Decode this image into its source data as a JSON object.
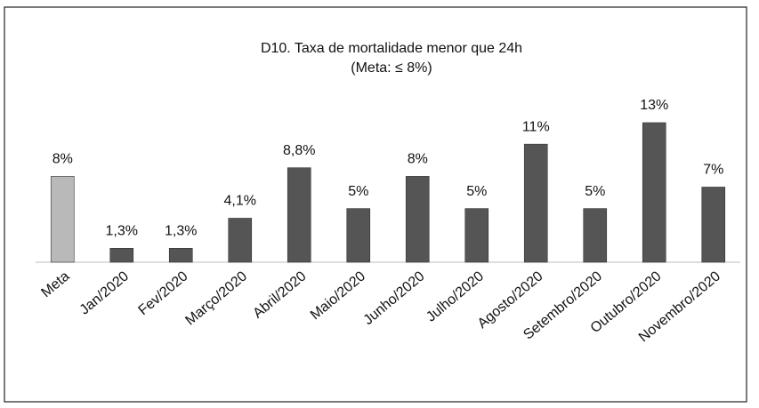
{
  "chart_data": {
    "type": "bar",
    "title": "D10. Taxa de mortalidade menor que 24h",
    "subtitle": "(Meta: ≤ 8%)",
    "categories": [
      "Meta",
      "Jan/2020",
      "Fev/2020",
      "Março/2020",
      "Abril/2020",
      "Maio/2020",
      "Junho/2020",
      "Julho/2020",
      "Agosto/2020",
      "Setembro/2020",
      "Outubro/2020",
      "Novembro/2020"
    ],
    "values": [
      8,
      1.3,
      1.3,
      4.1,
      8.8,
      5,
      8,
      5,
      11,
      5,
      13,
      7
    ],
    "value_labels": [
      "8%",
      "1,3%",
      "1,3%",
      "4,1%",
      "8,8%",
      "5%",
      "8%",
      "5%",
      "11%",
      "5%",
      "13%",
      "7%"
    ],
    "colors": [
      "#b9b9b9",
      "#555555",
      "#555555",
      "#555555",
      "#555555",
      "#555555",
      "#555555",
      "#555555",
      "#555555",
      "#555555",
      "#555555",
      "#555555"
    ]
  }
}
